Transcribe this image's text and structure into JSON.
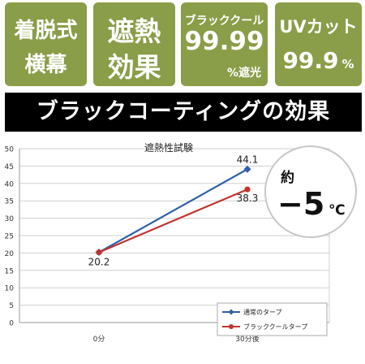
{
  "badges": [
    {
      "line1": "着脱式",
      "line2": "横幕"
    },
    {
      "line1": "遮熱",
      "line2": "効果"
    },
    {
      "line1": "ブラッククール",
      "line2": "99.99",
      "line3": "%遮光"
    },
    {
      "line1": "UVカット",
      "line2": "99.9",
      "line2_suffix": "%"
    }
  ],
  "banner": "ブラックコーティングの効果",
  "callout": {
    "prefix": "約",
    "value": "−5",
    "unit": "℃"
  },
  "colors": {
    "badge": "#8a9d48",
    "banner": "#000000",
    "series_blue": "#2f5fa6",
    "series_red": "#c0342e"
  },
  "chart_data": {
    "type": "line",
    "title": "遮熱性試験",
    "categories": [
      "0分",
      "30分後"
    ],
    "ylim": [
      0,
      50
    ],
    "yticks": [
      0,
      5,
      10,
      15,
      20,
      25,
      30,
      35,
      40,
      45,
      50
    ],
    "grid": true,
    "legend_position": "bottom-right",
    "series": [
      {
        "name": "通常のタープ",
        "values": [
          20.2,
          44.1
        ],
        "color": "#2f5fa6",
        "marker": "diamond"
      },
      {
        "name": "ブラッククールタープ",
        "values": [
          20.2,
          38.3
        ],
        "color": "#c0342e",
        "marker": "circle"
      }
    ],
    "data_labels": [
      {
        "series": 0,
        "point": 0,
        "text": "20.2"
      },
      {
        "series": 0,
        "point": 1,
        "text": "44.1"
      },
      {
        "series": 1,
        "point": 1,
        "text": "38.3"
      }
    ]
  }
}
